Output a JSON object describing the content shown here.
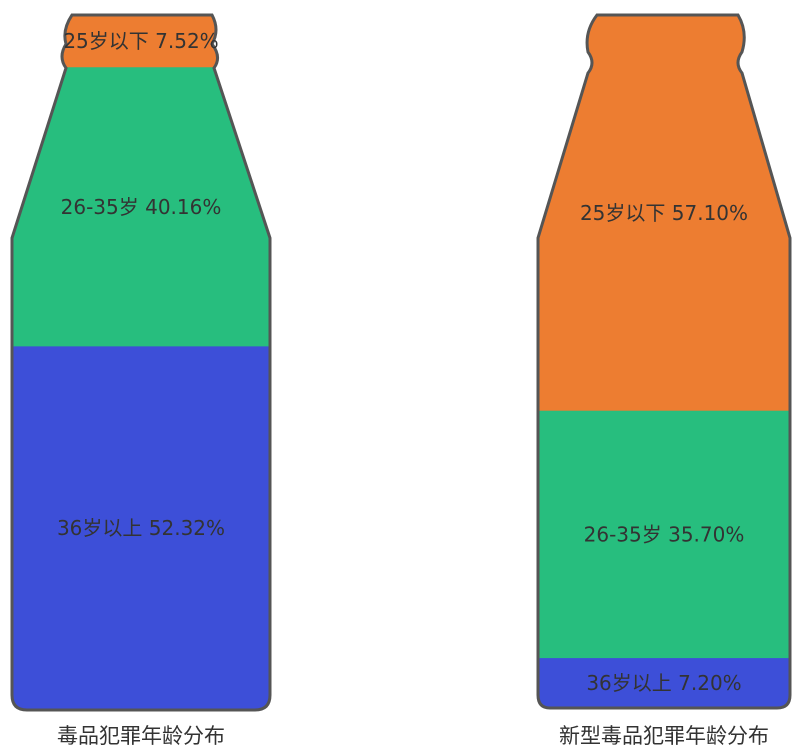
{
  "chart_data": [
    {
      "type": "stacked-bar",
      "title": "毒品犯罪年龄分布",
      "unit": "%",
      "segments": [
        {
          "name": "25岁以下",
          "value": 7.52,
          "label": "25岁以下 7.52%",
          "color": "#ED7D31"
        },
        {
          "name": "26-35岁",
          "value": 40.16,
          "label": "26-35岁 40.16%",
          "color": "#27BE7E"
        },
        {
          "name": "36岁以上",
          "value": 52.32,
          "label": "36岁以上 52.32%",
          "color": "#3D4FD8"
        }
      ]
    },
    {
      "type": "stacked-bar",
      "title": "新型毒品犯罪年龄分布",
      "unit": "%",
      "segments": [
        {
          "name": "25岁以下",
          "value": 57.1,
          "label": "25岁以下 57.10%",
          "color": "#ED7D31"
        },
        {
          "name": "26-35岁",
          "value": 35.7,
          "label": "26-35岁 35.70%",
          "color": "#27BE7E"
        },
        {
          "name": "36岁以上",
          "value": 7.2,
          "label": "36岁以上 7.20%",
          "color": "#3D4FD8"
        }
      ]
    }
  ],
  "outline_color": "#555555"
}
